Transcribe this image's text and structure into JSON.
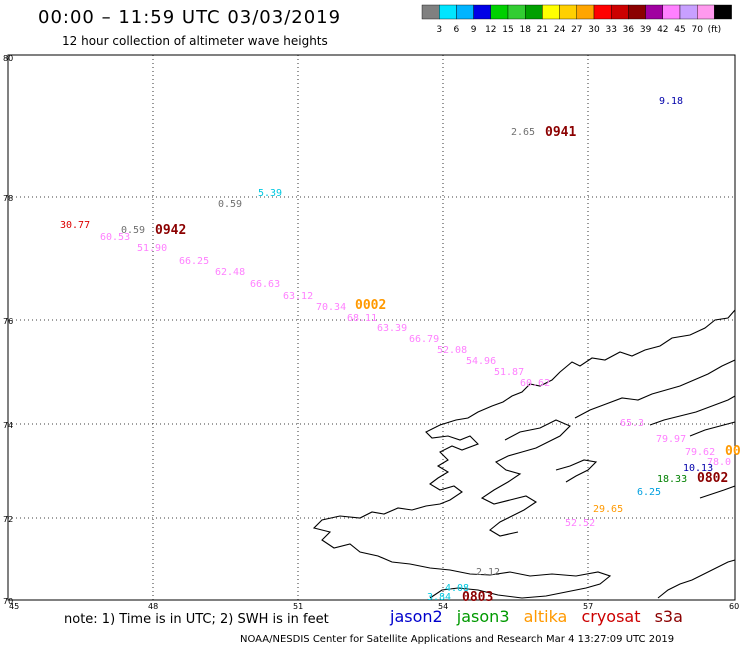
{
  "title": "00:00 – 11:59 UTC 03/03/2019",
  "subtitle": "12 hour collection of altimeter wave heights",
  "colorbar": {
    "colors": [
      "#808080",
      "#00e5ff",
      "#00b4ff",
      "#0000e6",
      "#00d000",
      "#32cd32",
      "#00a000",
      "#ffff00",
      "#ffd000",
      "#ffa500",
      "#ff0000",
      "#cc0000",
      "#8b0000",
      "#a000a0",
      "#ff80ff",
      "#c8a0ff",
      "#ff99ee",
      "#000000"
    ],
    "labels": [
      "3",
      "6",
      "9",
      "12",
      "15",
      "18",
      "21",
      "24",
      "27",
      "30",
      "33",
      "36",
      "39",
      "42",
      "45",
      "70",
      "(ft)"
    ]
  },
  "axes": {
    "lat_ticks": [
      "80",
      "78",
      "76",
      "74",
      "72",
      "70"
    ],
    "lon_ticks": [
      "45",
      "48",
      "51",
      "54",
      "57",
      "60"
    ]
  },
  "observations": [
    {
      "text": "9.18",
      "color": "#0000aa"
    },
    {
      "text": "2.65",
      "color": "#707070"
    },
    {
      "text": "0941",
      "color": "#8b0000",
      "time": true
    },
    {
      "text": "5.39",
      "color": "#00c8e0"
    },
    {
      "text": "0.59",
      "color": "#707070"
    },
    {
      "text": "30.77",
      "color": "#dd0000"
    },
    {
      "text": "60.53",
      "color": "#ff80ff"
    },
    {
      "text": "0.59",
      "color": "#707070"
    },
    {
      "text": "0942",
      "color": "#8b0000",
      "time": true
    },
    {
      "text": "51.90",
      "color": "#ff80ff"
    },
    {
      "text": "66.25",
      "color": "#ff80ff"
    },
    {
      "text": "62.48",
      "color": "#ff80ff"
    },
    {
      "text": "66.63",
      "color": "#ff80ff"
    },
    {
      "text": "63.12",
      "color": "#ff80ff"
    },
    {
      "text": "70.34",
      "color": "#ff80ff"
    },
    {
      "text": "0002",
      "color": "#ff9900",
      "time": true
    },
    {
      "text": "68.11",
      "color": "#ff80ff"
    },
    {
      "text": "63.39",
      "color": "#ff80ff"
    },
    {
      "text": "66.79",
      "color": "#ff80ff"
    },
    {
      "text": "52.08",
      "color": "#ff80ff"
    },
    {
      "text": "54.96",
      "color": "#ff80ff"
    },
    {
      "text": "51.87",
      "color": "#ff80ff"
    },
    {
      "text": "60.62",
      "color": "#ff80ff"
    },
    {
      "text": "65.3",
      "color": "#ff80ff"
    },
    {
      "text": "79.97",
      "color": "#ff80ff"
    },
    {
      "text": "79.62",
      "color": "#ff80ff"
    },
    {
      "text": "78.0",
      "color": "#ff80ff"
    },
    {
      "text": "00",
      "color": "#ff9900",
      "time": true
    },
    {
      "text": "10.13",
      "color": "#0000aa"
    },
    {
      "text": "18.33",
      "color": "#008000"
    },
    {
      "text": "0802",
      "color": "#8b0000",
      "time": true
    },
    {
      "text": "6.25",
      "color": "#00a0e0"
    },
    {
      "text": "29.65",
      "color": "#ff9900"
    },
    {
      "text": "52.52",
      "color": "#ff80ff"
    },
    {
      "text": "2.12",
      "color": "#707070"
    },
    {
      "text": "4.08",
      "color": "#00c8e0"
    },
    {
      "text": "3.84",
      "color": "#00c8e0"
    },
    {
      "text": "0803",
      "color": "#8b0000",
      "time": true
    }
  ],
  "note": "note:  1) Time is in UTC;  2) SWH is in feet",
  "satellites": [
    {
      "name": "jason2",
      "color": "#0000cc"
    },
    {
      "name": "jason3",
      "color": "#009900"
    },
    {
      "name": "altika",
      "color": "#ff9900"
    },
    {
      "name": "cryosat",
      "color": "#cc0000"
    },
    {
      "name": "s3a",
      "color": "#8b0000"
    }
  ],
  "credit": "NOAA/NESDIS Center for Satellite Applications and Research    Mar  4 13:27:09 UTC 2019"
}
